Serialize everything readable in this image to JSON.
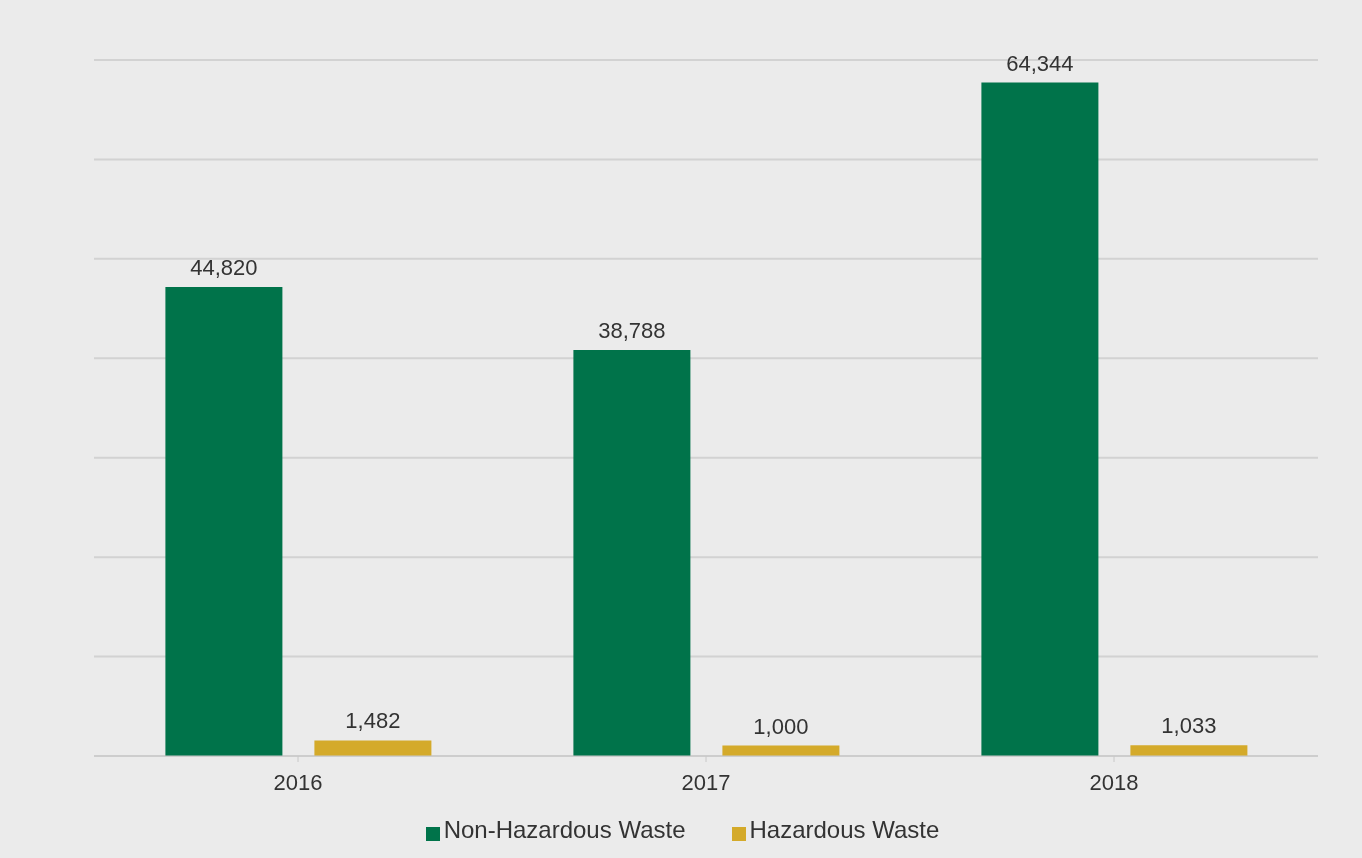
{
  "chart_data": {
    "type": "bar",
    "categories": [
      "2016",
      "2017",
      "2018"
    ],
    "series": [
      {
        "name": "Non-Hazardous Waste",
        "color": "#00734a",
        "values": [
          44820,
          38788,
          64344
        ],
        "value_labels": [
          "44,820",
          "38,788",
          "64,344"
        ]
      },
      {
        "name": "Hazardous Waste",
        "color": "#d4aa2a",
        "values": [
          1482,
          1000,
          1033
        ],
        "value_labels": [
          "1,482",
          "1,000",
          "1,033"
        ]
      }
    ],
    "grid": "y",
    "legend": "bottom",
    "tick_labels": "x"
  }
}
